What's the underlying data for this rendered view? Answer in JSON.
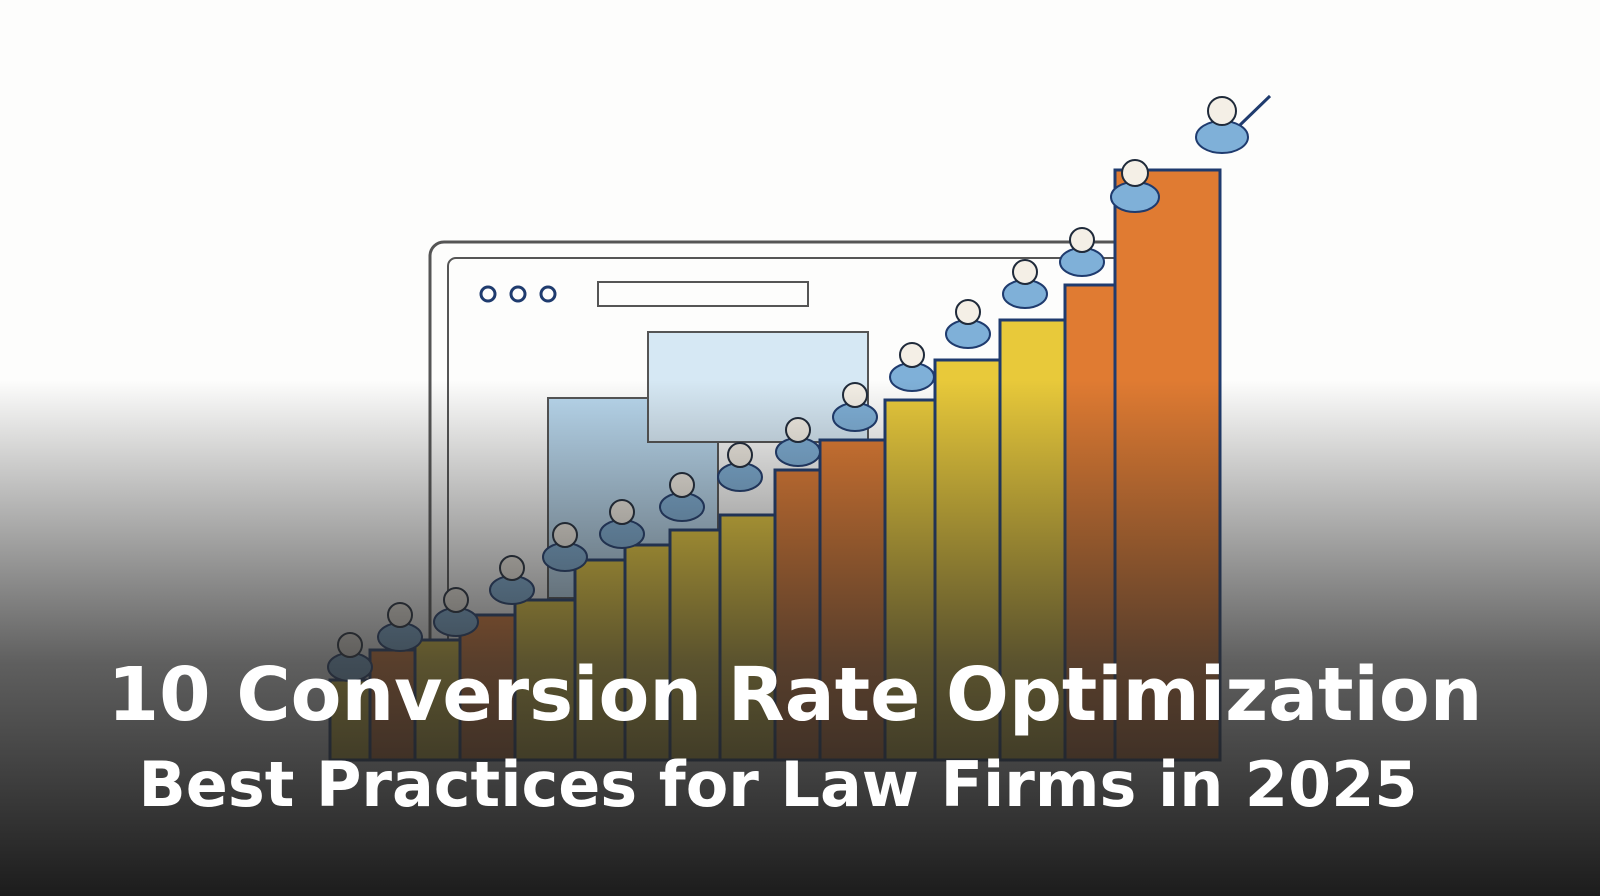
{
  "title": {
    "line1": "10 Conversion Rate Optimization",
    "line2": "Best Practices for Law Firms in 2025"
  }
}
